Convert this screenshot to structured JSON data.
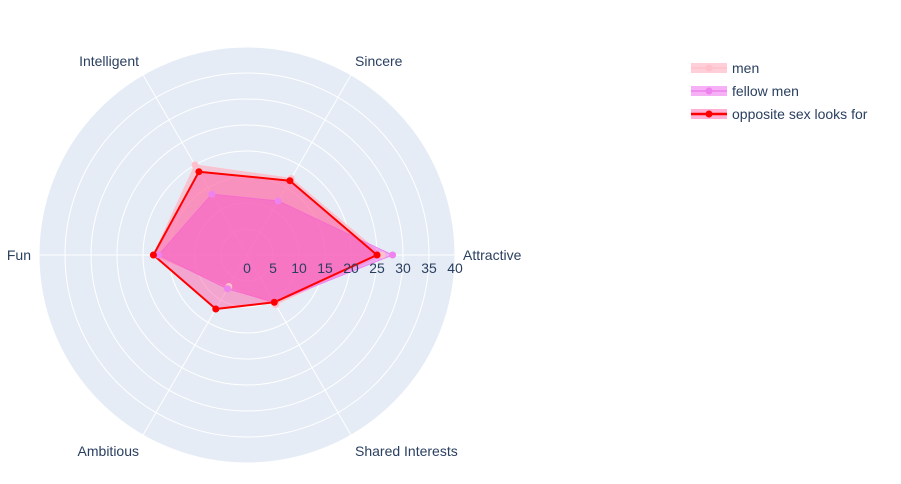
{
  "chart_data": {
    "type": "radar",
    "categories": [
      "Attractive",
      "Sincere",
      "Intelligent",
      "Fun",
      "Ambitious",
      "Shared Interests"
    ],
    "radial_ticks": [
      "0",
      "5",
      "10",
      "15",
      "20",
      "25",
      "30",
      "35",
      "40"
    ],
    "range": [
      0,
      40
    ],
    "grid": true,
    "legend_position": "top-right",
    "series": [
      {
        "name": "men",
        "values": [
          26,
          17,
          20,
          18,
          7,
          11
        ],
        "color": "#ffc0cb",
        "fill": "rgba(255,160,180,0.5)",
        "line_width": 1
      },
      {
        "name": "fellow men",
        "values": [
          28,
          12,
          13.5,
          17,
          7.5,
          10.5
        ],
        "color": "#ee82ee",
        "fill": "rgba(238,100,238,0.5)",
        "line_width": 1
      },
      {
        "name": "opposite sex looks for",
        "values": [
          25,
          16.5,
          18.5,
          18,
          12,
          10.5
        ],
        "color": "#ff0000",
        "fill": "rgba(255,80,160,0.45)",
        "line_width": 2
      }
    ]
  }
}
